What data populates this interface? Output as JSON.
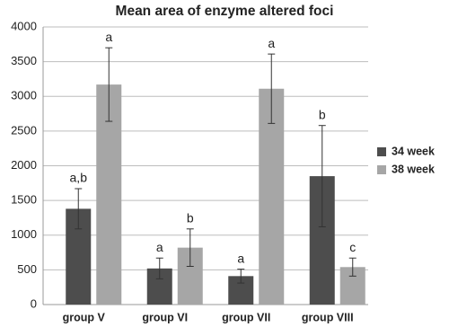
{
  "chart_data": {
    "type": "bar",
    "title": "Mean area of enzyme altered foci",
    "categories": [
      "group V",
      "group VI",
      "group VII",
      "group VIII"
    ],
    "series": [
      {
        "name": "34 week",
        "color": "#4d4d4d",
        "values": [
          1380,
          520,
          410,
          1850
        ],
        "errors": [
          290,
          150,
          100,
          730
        ],
        "labels": [
          "a,b",
          "a",
          "a",
          "b"
        ]
      },
      {
        "name": "38 week",
        "color": "#a6a6a6",
        "values": [
          3170,
          820,
          3110,
          540
        ],
        "errors": [
          530,
          270,
          500,
          130
        ],
        "labels": [
          "a",
          "b",
          "a",
          "c"
        ]
      }
    ],
    "ylim": [
      0,
      4000
    ],
    "yticks": [
      0,
      500,
      1000,
      1500,
      2000,
      2500,
      3000,
      3500,
      4000
    ],
    "grid": true,
    "legend": "right"
  }
}
